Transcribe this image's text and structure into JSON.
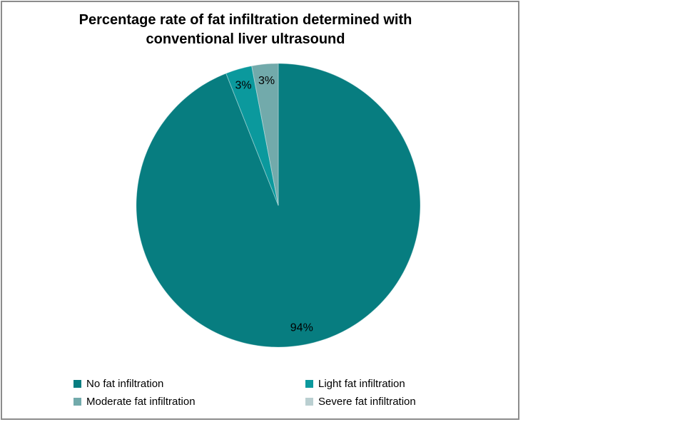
{
  "chart_data": {
    "type": "pie",
    "title": "Percentage rate of fat infiltration determined with conventional liver ultrasound",
    "title_lines": [
      "Percentage rate of fat infiltration determined with",
      "conventional liver ultrasound"
    ],
    "categories": [
      "No fat infiltration",
      "Light fat infiltration",
      "Moderate fat infiltration",
      "Severe fat infiltration"
    ],
    "values": [
      94,
      3,
      3,
      0
    ],
    "data_labels": [
      "94%",
      "3%",
      "3%",
      ""
    ],
    "colors": [
      "#077D80",
      "#0B999D",
      "#72AAAB",
      "#BACFD1"
    ],
    "start_angle_deg": 0,
    "direction": "clockwise",
    "legend_position": "bottom",
    "label_color": "#000000",
    "title_color": "#000000",
    "frame_border_color": "#8C8C8C",
    "background_color": "#FFFFFF"
  }
}
